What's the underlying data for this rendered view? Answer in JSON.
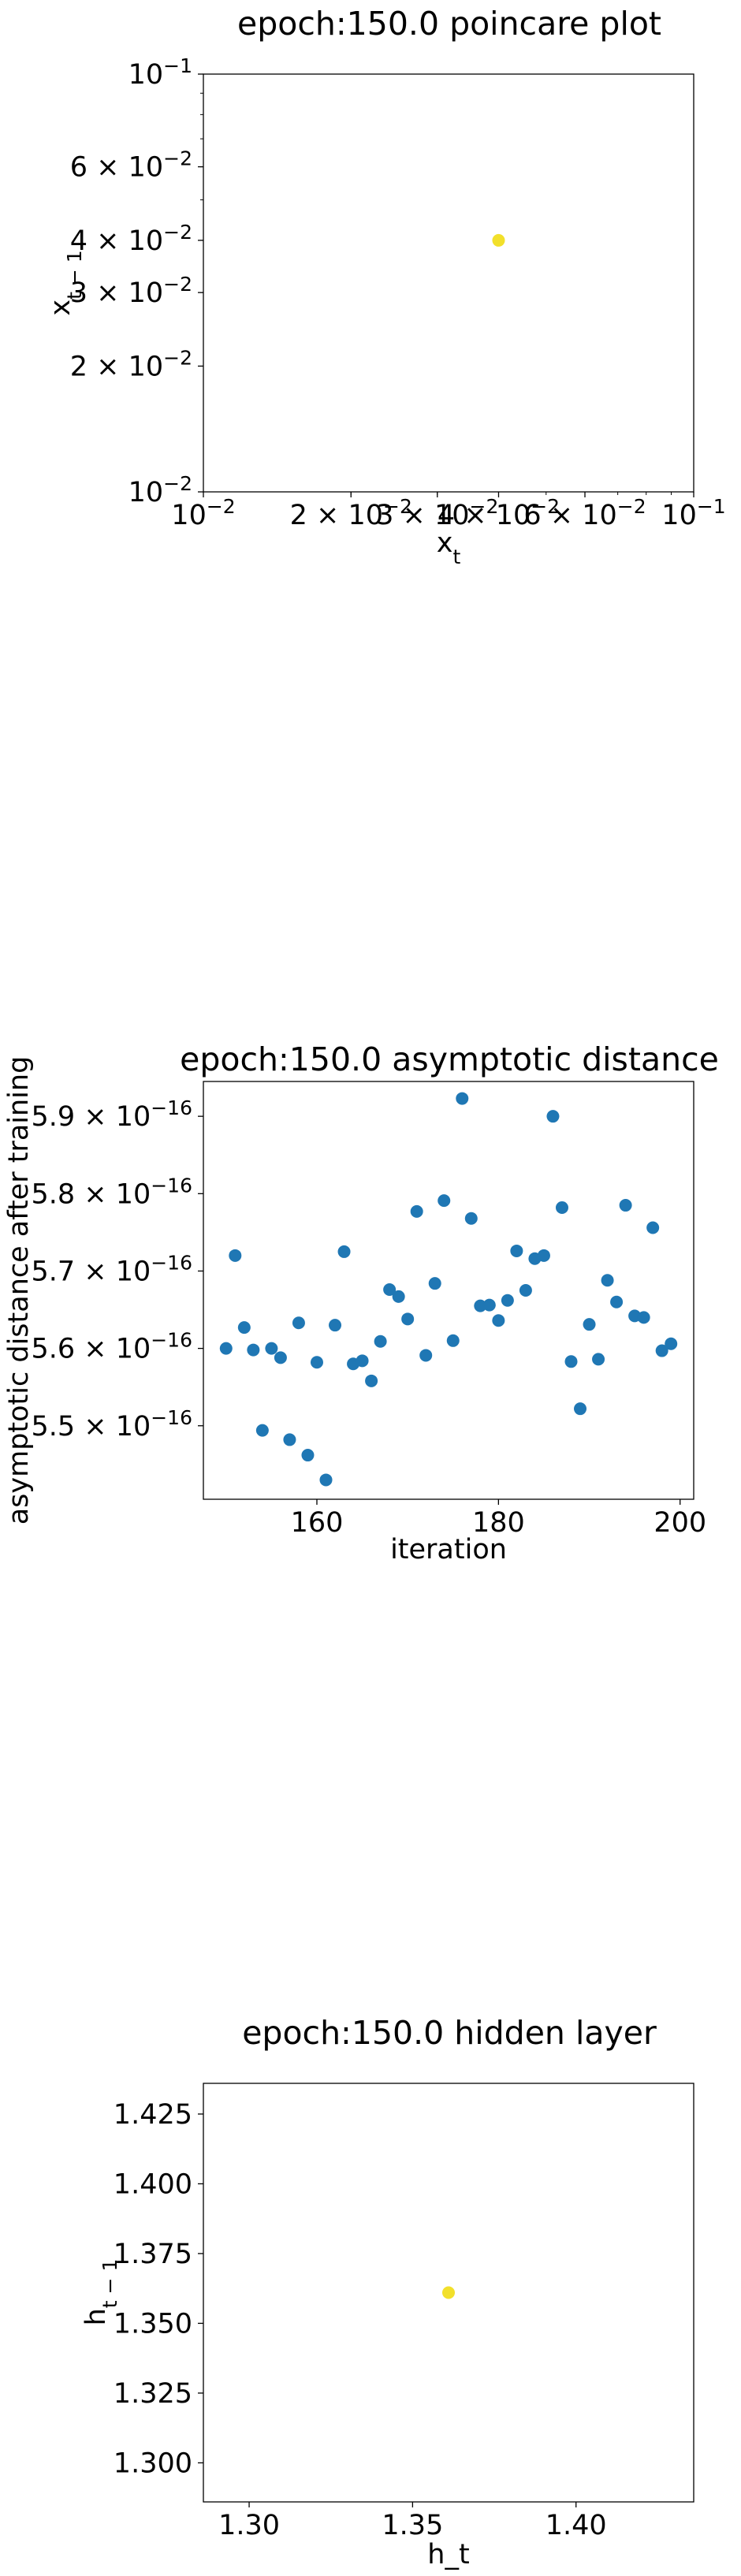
{
  "chart_data": [
    {
      "type": "scatter",
      "title": "epoch:150.0 poincare plot",
      "xlabel": "x_t",
      "ylabel": "x_{t-1}",
      "xscale": "log",
      "yscale": "log",
      "xlim": [
        0.01,
        0.1
      ],
      "ylim": [
        0.01,
        0.1
      ],
      "grid": false,
      "marker_color": "#f2e02b",
      "x_ticks": [
        {
          "v": 0.01,
          "mant": "10",
          "exp": "−2"
        },
        {
          "v": 0.02,
          "mant": "2 × 10",
          "exp": "−2"
        },
        {
          "v": 0.03,
          "mant": "3 × 10",
          "exp": "−2"
        },
        {
          "v": 0.04,
          "mant": "4 × 10",
          "exp": "−2"
        },
        {
          "v": 0.06,
          "mant": "6 × 10",
          "exp": "−2"
        },
        {
          "v": 0.1,
          "mant": "10",
          "exp": "−1"
        }
      ],
      "y_ticks": [
        {
          "v": 0.01,
          "mant": "10",
          "exp": "−2"
        },
        {
          "v": 0.02,
          "mant": "2 × 10",
          "exp": "−2"
        },
        {
          "v": 0.03,
          "mant": "3 × 10",
          "exp": "−2"
        },
        {
          "v": 0.04,
          "mant": "4 × 10",
          "exp": "−2"
        },
        {
          "v": 0.06,
          "mant": "6 × 10",
          "exp": "−2"
        },
        {
          "v": 0.1,
          "mant": "10",
          "exp": "−1"
        }
      ],
      "points": [
        {
          "x": 0.04,
          "y": 0.04
        }
      ]
    },
    {
      "type": "scatter",
      "title": "epoch:150.0 asymptotic distance",
      "xlabel": "iteration",
      "ylabel": "asymptotic distance after training",
      "xlim": [
        147.5,
        201.5
      ],
      "ylim": [
        5.405e-16,
        5.945e-16
      ],
      "grid": false,
      "marker_color": "#1f77b4",
      "x_ticks": [
        {
          "v": 160,
          "label": "160"
        },
        {
          "v": 180,
          "label": "180"
        },
        {
          "v": 200,
          "label": "200"
        }
      ],
      "y_ticks": [
        {
          "v": 5.5e-16,
          "mant": "5.5 × 10",
          "exp": "−16"
        },
        {
          "v": 5.6e-16,
          "mant": "5.6 × 10",
          "exp": "−16"
        },
        {
          "v": 5.7e-16,
          "mant": "5.7 × 10",
          "exp": "−16"
        },
        {
          "v": 5.8e-16,
          "mant": "5.8 × 10",
          "exp": "−16"
        },
        {
          "v": 5.9e-16,
          "mant": "5.9 × 10",
          "exp": "−16"
        }
      ],
      "x": [
        150,
        151,
        152,
        153,
        154,
        155,
        156,
        157,
        158,
        159,
        160,
        161,
        162,
        163,
        164,
        165,
        166,
        167,
        168,
        169,
        170,
        171,
        172,
        173,
        174,
        175,
        176,
        177,
        178,
        179,
        180,
        181,
        182,
        183,
        184,
        185,
        186,
        187,
        188,
        189,
        190,
        191,
        192,
        193,
        194,
        195,
        196,
        197,
        198,
        199
      ],
      "y": [
        5.6e-16,
        5.72e-16,
        5.627e-16,
        5.598e-16,
        5.494e-16,
        5.6e-16,
        5.588e-16,
        5.482e-16,
        5.633e-16,
        5.462e-16,
        5.582e-16,
        5.43e-16,
        5.63e-16,
        5.725e-16,
        5.58e-16,
        5.584e-16,
        5.558e-16,
        5.609e-16,
        5.676e-16,
        5.667e-16,
        5.638e-16,
        5.777e-16,
        5.591e-16,
        5.684e-16,
        5.791e-16,
        5.61e-16,
        5.923e-16,
        5.768e-16,
        5.655e-16,
        5.656e-16,
        5.636e-16,
        5.662e-16,
        5.726e-16,
        5.675e-16,
        5.716e-16,
        5.72e-16,
        5.9e-16,
        5.782e-16,
        5.583e-16,
        5.522e-16,
        5.631e-16,
        5.586e-16,
        5.688e-16,
        5.66e-16,
        5.785e-16,
        5.642e-16,
        5.64e-16,
        5.756e-16,
        5.597e-16,
        5.606e-16
      ]
    },
    {
      "type": "scatter",
      "title": "epoch:150.0 hidden layer",
      "xlabel": "h_t",
      "ylabel": "h_{t-1}",
      "xlim": [
        1.286,
        1.436
      ],
      "ylim": [
        1.286,
        1.436
      ],
      "grid": false,
      "marker_color": "#f2e02b",
      "x_ticks": [
        {
          "v": 1.3,
          "label": "1.30"
        },
        {
          "v": 1.35,
          "label": "1.35"
        },
        {
          "v": 1.4,
          "label": "1.40"
        }
      ],
      "y_ticks": [
        {
          "v": 1.3,
          "label": "1.300"
        },
        {
          "v": 1.325,
          "label": "1.325"
        },
        {
          "v": 1.35,
          "label": "1.350"
        },
        {
          "v": 1.375,
          "label": "1.375"
        },
        {
          "v": 1.4,
          "label": "1.400"
        },
        {
          "v": 1.425,
          "label": "1.425"
        }
      ],
      "points": [
        {
          "x": 1.361,
          "y": 1.361
        }
      ]
    }
  ]
}
